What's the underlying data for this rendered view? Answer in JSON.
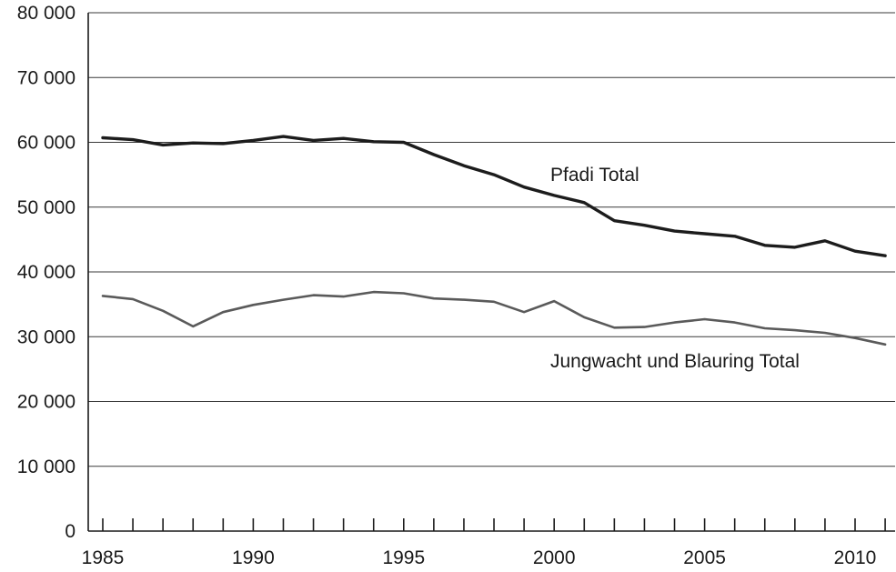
{
  "chart_data": {
    "type": "line",
    "title": "",
    "xlabel": "",
    "ylabel": "",
    "x": [
      1985,
      1986,
      1987,
      1988,
      1989,
      1990,
      1991,
      1992,
      1993,
      1994,
      1995,
      1996,
      1997,
      1998,
      1999,
      2000,
      2001,
      2002,
      2003,
      2004,
      2005,
      2006,
      2007,
      2008,
      2009,
      2010,
      2011
    ],
    "xlim": [
      1984.5,
      2011.3
    ],
    "ylim": [
      0,
      80000
    ],
    "x_ticks": [
      1985,
      1990,
      1995,
      2000,
      2005,
      2010
    ],
    "x_tick_labels": [
      "1985",
      "1990",
      "1995",
      "2000",
      "2005",
      "2010"
    ],
    "y_ticks": [
      0,
      10000,
      20000,
      30000,
      40000,
      50000,
      60000,
      70000,
      80000
    ],
    "y_tick_labels": [
      "0",
      "10 000",
      "20 000",
      "30 000",
      "40 000",
      "50 000",
      "60 000",
      "70 000",
      "80 000"
    ],
    "grid": "horizontal",
    "legend": "inline labels",
    "series": [
      {
        "name": "Pfadi Total",
        "color": "#1c1c1c",
        "values": [
          60700,
          60400,
          59600,
          59900,
          59800,
          60300,
          60900,
          60300,
          60600,
          60100,
          60000,
          58100,
          56400,
          55000,
          53100,
          51800,
          50700,
          47900,
          47200,
          46300,
          45900,
          45500,
          44100,
          43800,
          44800,
          43200,
          42500
        ]
      },
      {
        "name": "Jungwacht und Blauring Total",
        "color": "#5a5a5a",
        "values": [
          36300,
          35800,
          34000,
          31600,
          33800,
          34900,
          35700,
          36400,
          36200,
          36900,
          36700,
          35900,
          35700,
          35400,
          33800,
          35500,
          33000,
          31400,
          31500,
          32200,
          32700,
          32200,
          31300,
          31000,
          30600,
          29800,
          28800
        ]
      }
    ]
  }
}
